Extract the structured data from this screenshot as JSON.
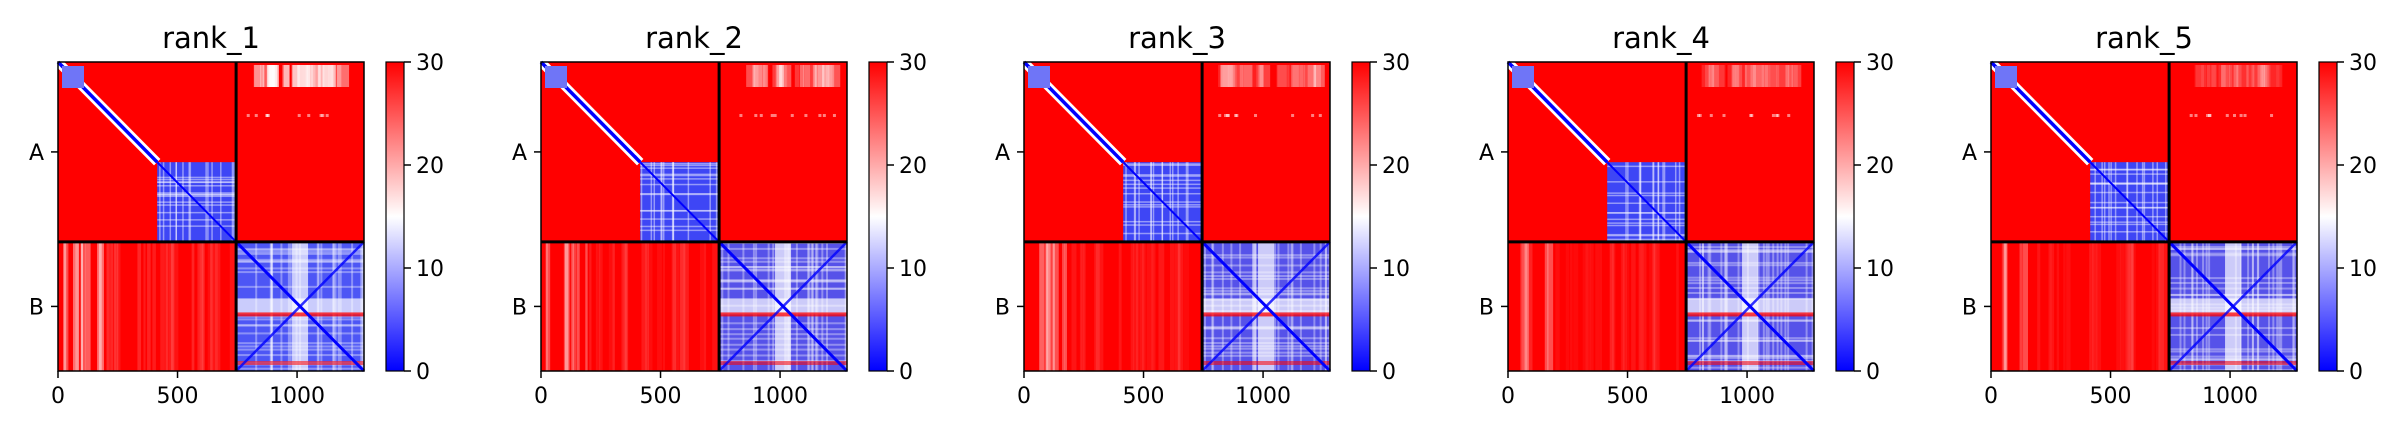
{
  "chart_data": {
    "type": "heatmap",
    "panels": [
      {
        "title": "rank_1",
        "top_right_white_band": 0.9,
        "bottom_left_white_stripes": 0.7,
        "bottom_right_intensity": 1.0
      },
      {
        "title": "rank_2",
        "top_right_white_band": 0.55,
        "bottom_left_white_stripes": 0.55,
        "bottom_right_intensity": 0.95
      },
      {
        "title": "rank_3",
        "top_right_white_band": 0.4,
        "bottom_left_white_stripes": 0.45,
        "bottom_right_intensity": 0.95
      },
      {
        "title": "rank_4",
        "top_right_white_band": 0.35,
        "bottom_left_white_stripes": 0.4,
        "bottom_right_intensity": 0.95
      },
      {
        "title": "rank_5",
        "top_right_white_band": 0.3,
        "bottom_left_white_stripes": 0.4,
        "bottom_right_intensity": 0.95
      }
    ],
    "x_range": [
      0,
      1280
    ],
    "x_ticks": [
      0,
      500,
      1000
    ],
    "x_tick_labels": [
      "0",
      "500",
      "1000"
    ],
    "chains": [
      {
        "label": "A",
        "start": 0,
        "end": 745
      },
      {
        "label": "B",
        "start": 745,
        "end": 1280
      }
    ],
    "sub_domain_boundary": 415,
    "colorbar": {
      "range": [
        0,
        30
      ],
      "ticks": [
        0,
        10,
        20,
        30
      ],
      "tick_labels": [
        "0",
        "10",
        "20",
        "30"
      ],
      "colors": {
        "low": "#0000ff",
        "mid": "#ffffff",
        "high": "#ff0000"
      }
    },
    "grid": false
  }
}
